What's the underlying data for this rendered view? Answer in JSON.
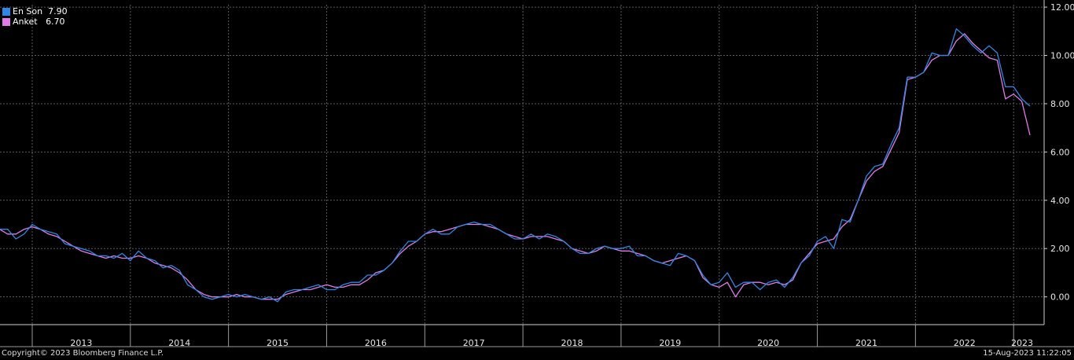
{
  "legend": {
    "items": [
      {
        "label": "En Son",
        "value": "7.90",
        "color": "#2f86e6"
      },
      {
        "label": "Anket",
        "value": "6.70",
        "color": "#e07be8"
      }
    ]
  },
  "footer": {
    "copyright": "Copyright© 2023 Bloomberg Finance L.P.",
    "timestamp": "15-Aug-2023 11:22:05"
  },
  "chart_data": {
    "type": "line",
    "x_start": "2012-08",
    "x_unit": "month",
    "xlim": [
      "2012-08",
      "2023-08"
    ],
    "ylim": [
      -1.15,
      12.1
    ],
    "y_ticks": [
      "0.00",
      "2.00",
      "4.00",
      "6.00",
      "8.00",
      "10.00",
      "12.00"
    ],
    "year_labels": [
      {
        "label": "2013",
        "at": "2013-01"
      },
      {
        "label": "2014",
        "at": "2014-01"
      },
      {
        "label": "2015",
        "at": "2015-01"
      },
      {
        "label": "2016",
        "at": "2016-01"
      },
      {
        "label": "2017",
        "at": "2017-01"
      },
      {
        "label": "2018",
        "at": "2018-01"
      },
      {
        "label": "2019",
        "at": "2019-01"
      },
      {
        "label": "2020",
        "at": "2020-01"
      },
      {
        "label": "2021",
        "at": "2021-01"
      },
      {
        "label": "2022",
        "at": "2022-01"
      },
      {
        "label": "2023",
        "at": "2023-01"
      }
    ],
    "grid": true,
    "y_axis_position": "right",
    "series": [
      {
        "name": "En Son",
        "color": "#2f86e6",
        "values": [
          2.7,
          2.8,
          2.8,
          2.4,
          2.6,
          3.0,
          2.8,
          2.7,
          2.6,
          2.2,
          2.1,
          2.0,
          1.9,
          1.7,
          1.7,
          1.6,
          1.8,
          1.5,
          1.9,
          1.6,
          1.5,
          1.2,
          1.3,
          1.1,
          0.5,
          0.3,
          0.0,
          -0.1,
          0.0,
          0.1,
          0.0,
          0.1,
          0.0,
          -0.1,
          0.0,
          -0.2,
          0.2,
          0.3,
          0.3,
          0.4,
          0.5,
          0.3,
          0.3,
          0.5,
          0.6,
          0.6,
          0.9,
          0.9,
          1.1,
          1.4,
          1.9,
          2.3,
          2.3,
          2.6,
          2.8,
          2.6,
          2.6,
          2.9,
          3.0,
          3.1,
          3.0,
          3.0,
          2.8,
          2.6,
          2.4,
          2.4,
          2.6,
          2.4,
          2.6,
          2.5,
          2.3,
          2.0,
          1.8,
          1.8,
          2.0,
          2.1,
          2.0,
          2.0,
          2.1,
          1.7,
          1.7,
          1.5,
          1.4,
          1.3,
          1.8,
          1.7,
          1.5,
          0.9,
          0.5,
          0.6,
          1.0,
          0.4,
          0.6,
          0.6,
          0.3,
          0.6,
          0.7,
          0.4,
          0.8,
          1.4,
          1.7,
          2.3,
          2.5,
          2.0,
          3.2,
          3.1,
          4.0,
          5.0,
          5.4,
          5.5,
          6.3,
          7.0,
          9.1,
          9.1,
          9.3,
          10.1,
          10.0,
          10.0,
          11.1,
          10.8,
          10.4,
          10.1,
          10.4,
          10.1,
          8.7,
          8.7,
          8.2,
          7.9
        ]
      },
      {
        "name": "Anket",
        "color": "#e07be8",
        "values": [
          2.8,
          2.8,
          2.6,
          2.6,
          2.8,
          2.9,
          2.8,
          2.6,
          2.5,
          2.3,
          2.1,
          1.9,
          1.8,
          1.7,
          1.6,
          1.7,
          1.6,
          1.6,
          1.7,
          1.6,
          1.4,
          1.3,
          1.2,
          1.0,
          0.7,
          0.3,
          0.1,
          0.0,
          0.0,
          0.0,
          0.1,
          0.0,
          0.0,
          -0.1,
          -0.1,
          -0.1,
          0.1,
          0.2,
          0.3,
          0.3,
          0.4,
          0.5,
          0.4,
          0.4,
          0.5,
          0.5,
          0.7,
          1.0,
          1.1,
          1.4,
          1.8,
          2.1,
          2.3,
          2.6,
          2.7,
          2.7,
          2.8,
          2.9,
          3.0,
          3.0,
          3.0,
          2.9,
          2.8,
          2.6,
          2.5,
          2.4,
          2.5,
          2.5,
          2.5,
          2.4,
          2.3,
          2.0,
          1.9,
          1.8,
          1.9,
          2.1,
          2.0,
          1.9,
          1.9,
          1.8,
          1.7,
          1.5,
          1.4,
          1.5,
          1.6,
          1.7,
          1.5,
          0.8,
          0.5,
          0.4,
          0.6,
          0.0,
          0.5,
          0.6,
          0.6,
          0.5,
          0.6,
          0.5,
          0.7,
          1.4,
          1.8,
          2.2,
          2.3,
          2.4,
          2.9,
          3.2,
          4.0,
          4.8,
          5.2,
          5.4,
          6.1,
          6.8,
          9.0,
          9.1,
          9.3,
          9.8,
          10.0,
          10.0,
          10.6,
          10.9,
          10.5,
          10.2,
          9.9,
          9.8,
          8.2,
          8.4,
          8.1,
          6.7
        ]
      }
    ]
  }
}
